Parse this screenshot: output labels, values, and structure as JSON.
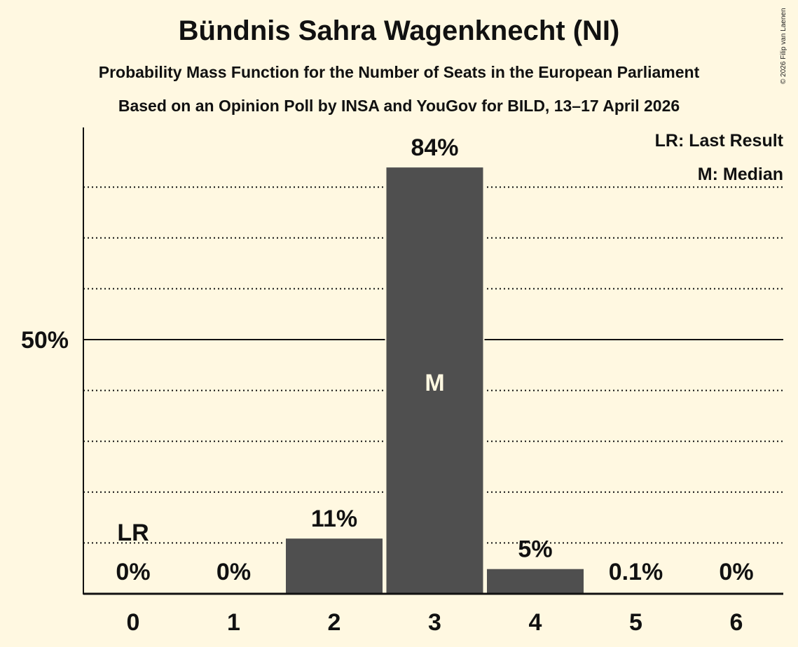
{
  "title": "Bündnis Sahra Wagenknecht (NI)",
  "subtitle1": "Probability Mass Function for the Number of Seats in the European Parliament",
  "subtitle2": "Based on an Opinion Poll by INSA and YouGov for BILD, 13–17 April 2026",
  "copyright": "© 2026 Filip van Laenen",
  "legend": {
    "lr": "LR: Last Result",
    "median": "M: Median"
  },
  "y_axis_label": "50%",
  "colors": {
    "background": "#FFF8E1",
    "bar": "#4F4F4F",
    "text": "#111111"
  },
  "chart_data": {
    "type": "bar",
    "title": "Bündnis Sahra Wagenknecht (NI)",
    "subtitle": "Probability Mass Function for the Number of Seats in the European Parliament",
    "xlabel": "",
    "ylabel": "",
    "categories": [
      "0",
      "1",
      "2",
      "3",
      "4",
      "5",
      "6"
    ],
    "values": [
      0,
      0,
      11,
      84,
      5,
      0.1,
      0
    ],
    "value_labels": [
      "0%",
      "0%",
      "11%",
      "84%",
      "5%",
      "0.1%",
      "0%"
    ],
    "ylim": [
      0,
      90
    ],
    "y_ticks": [
      {
        "value": 50,
        "label": "50%"
      }
    ],
    "gridlines": "dotted every 10%, solid at 50%",
    "annotations": [
      {
        "category": "0",
        "text": "LR",
        "meaning": "Last Result"
      },
      {
        "category": "3",
        "text": "M",
        "meaning": "Median"
      }
    ],
    "legend_position": "top-right"
  }
}
